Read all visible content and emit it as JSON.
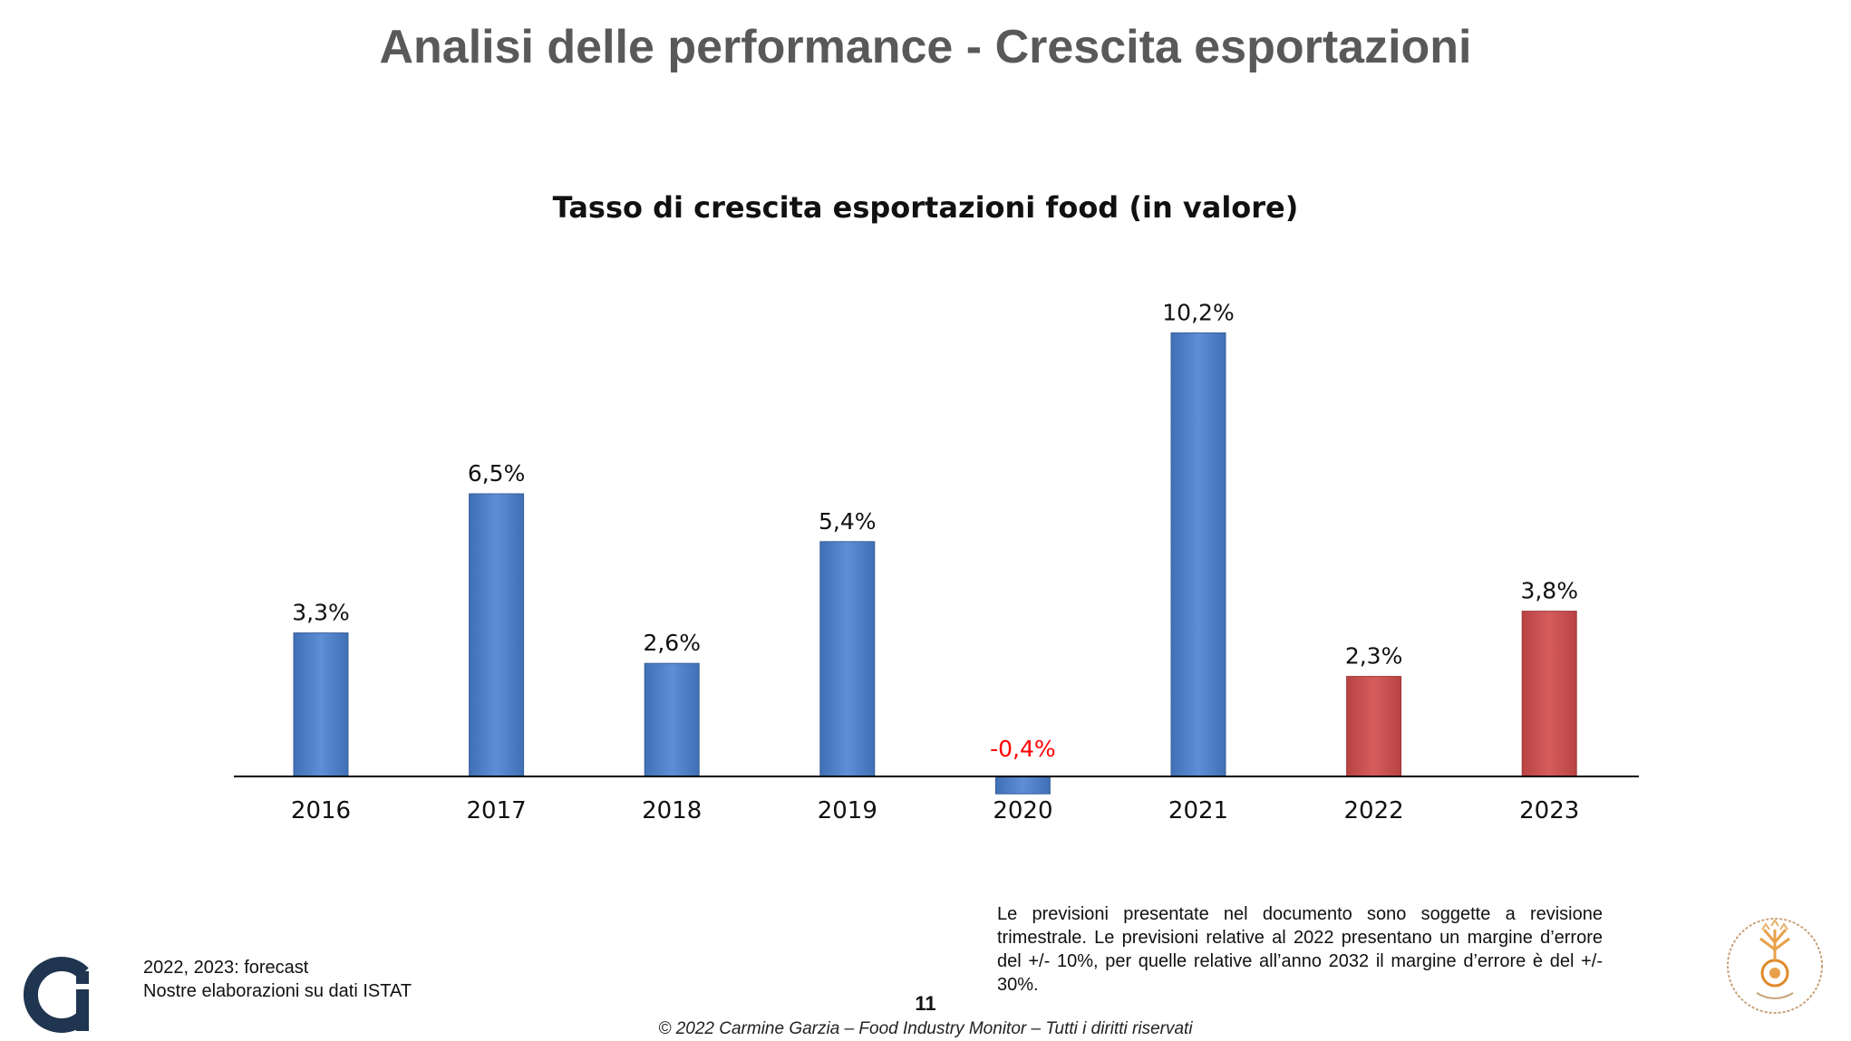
{
  "slide": {
    "title": "Analisi delle performance - Crescita esportazioni",
    "page_number": "11",
    "copyright": "© 2022 Carmine Garzia – Food Industry Monitor – Tutti i diritti riservati"
  },
  "notes": {
    "line1": "2022, 2023: forecast",
    "line2": "Nostre elaborazioni su dati ISTAT"
  },
  "disclaimer": {
    "text": "Le previsioni presentate nel documento sono soggette a revisione trimestrale. Le previsioni relative al 2022 presentano un margine d’errore del +/- 10%, per quelle relative all’anno 2032 il margine d’errore è del +/- 30%."
  },
  "logos": {
    "left_icon": "ci-logo-icon",
    "right_icon": "university-seal-icon"
  },
  "colors": {
    "actual": "#5B8BD0",
    "forecast": "#D05656",
    "negative_label": "#FF0000",
    "title": "#595959"
  },
  "chart_data": {
    "type": "bar",
    "title": "Tasso di crescita esportazioni food (in valore)",
    "xlabel": "",
    "ylabel": "",
    "categories": [
      "2016",
      "2017",
      "2018",
      "2019",
      "2020",
      "2021",
      "2022",
      "2023"
    ],
    "values": [
      3.3,
      6.5,
      2.6,
      5.4,
      -0.4,
      10.2,
      2.3,
      3.8
    ],
    "data_labels": [
      "3,3%",
      "6,5%",
      "2,6%",
      "5,4%",
      "-0,4%",
      "10,2%",
      "2,3%",
      "3,8%"
    ],
    "forecast": [
      false,
      false,
      false,
      false,
      false,
      false,
      true,
      true
    ],
    "ylim": [
      -0.4,
      10.2
    ],
    "grid": false,
    "legend": "none"
  }
}
